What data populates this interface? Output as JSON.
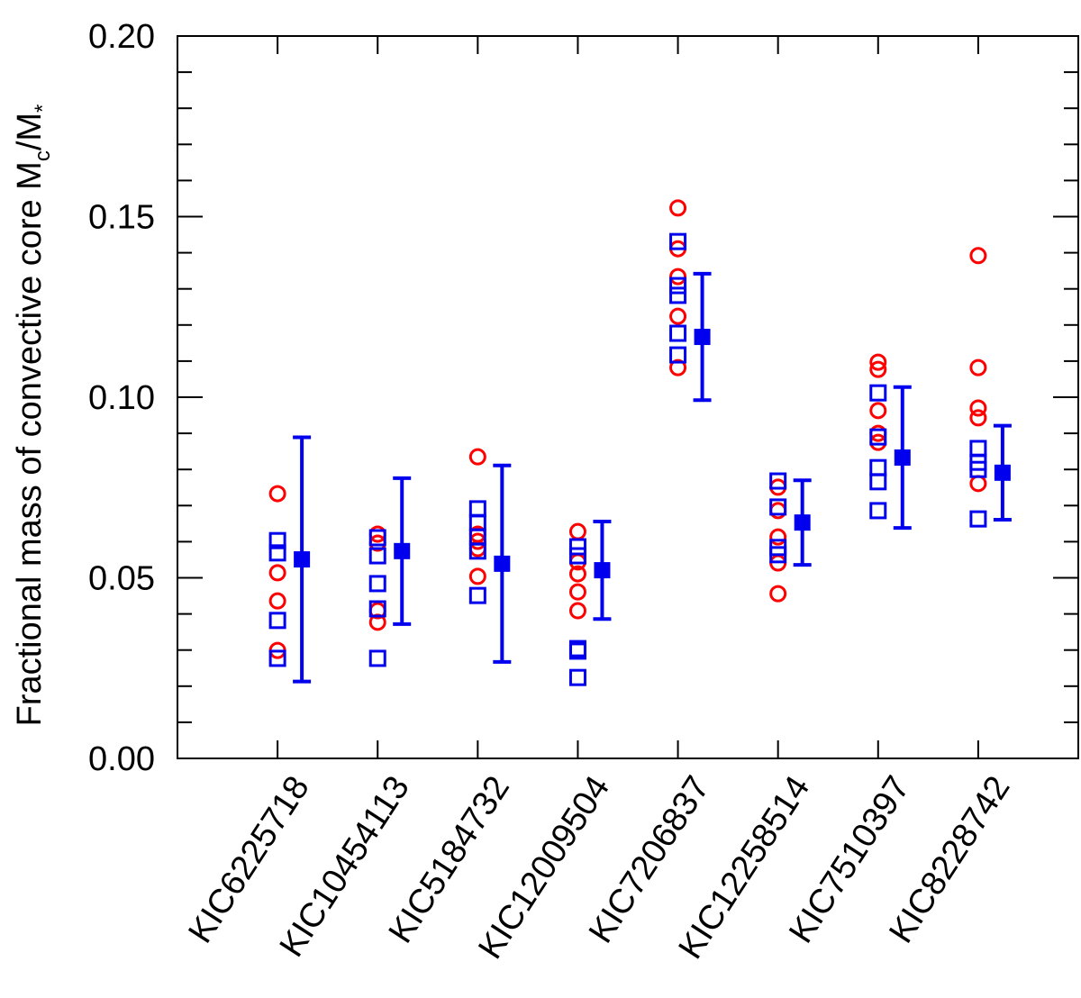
{
  "chart_data": {
    "type": "scatter",
    "ylabel": [
      "Fractional  mass of convective core M",
      "c",
      "/M",
      "*"
    ],
    "categories": [
      "KIC6225718",
      "KIC10454113",
      "KIC5184732",
      "KIC12009504",
      "KIC7206837",
      "KIC12258514",
      "KIC7510397",
      "KIC8228742"
    ],
    "ylim": [
      0,
      0.2
    ],
    "yticks": [
      {
        "value": 0,
        "label": "0.00"
      },
      {
        "value": 0.05,
        "label": "0.05"
      },
      {
        "value": 0.1,
        "label": "0.10"
      },
      {
        "value": 0.15,
        "label": "0.15"
      },
      {
        "value": 0.2,
        "label": "0.20"
      }
    ],
    "yminor_ticks": [
      0.01,
      0.02,
      0.03,
      0.04,
      0.06,
      0.07,
      0.08,
      0.09,
      0.11,
      0.12,
      0.13,
      0.14,
      0.16,
      0.17,
      0.18,
      0.19
    ],
    "series": [
      {
        "marker": "circle",
        "color": "#ff0000",
        "values": [
          [
            0.0733,
            0.0514,
            0.0436,
            0.0299
          ],
          [
            0.0621,
            0.0596,
            0.0409,
            0.0377
          ],
          [
            0.0835,
            0.0621,
            0.0601,
            0.0581,
            0.0504
          ],
          [
            0.0628,
            0.0544,
            0.0511,
            0.0461,
            0.0409
          ],
          [
            0.1524,
            0.1411,
            0.1334,
            0.1224,
            0.1082
          ],
          [
            0.0751,
            0.0686,
            0.0613,
            0.0541,
            0.0456
          ],
          [
            0.1097,
            0.1077,
            0.0963,
            0.09,
            0.0875
          ],
          [
            0.1392,
            0.1082,
            0.097,
            0.0943,
            0.0761
          ]
        ]
      },
      {
        "marker": "square",
        "color": "#0000ee",
        "values": [
          [
            0.0603,
            0.0569,
            0.0382,
            0.0277
          ],
          [
            0.0611,
            0.0561,
            0.0484,
            0.0414,
            0.0277
          ],
          [
            0.0691,
            0.0653,
            0.0613,
            0.0574,
            0.0451
          ],
          [
            0.0586,
            0.0561,
            0.0304,
            0.0297,
            0.0224
          ],
          [
            0.1431,
            0.1309,
            0.1282,
            0.1177,
            0.1117
          ],
          [
            0.0768,
            0.0696,
            0.0584,
            0.0564
          ],
          [
            0.1012,
            0.089,
            0.0805,
            0.0766,
            0.0686
          ],
          [
            0.0858,
            0.082,
            0.08,
            0.0663
          ]
        ]
      },
      {
        "marker": "filled-square",
        "color": "#0000ee",
        "values": [
          0.0551,
          0.0574,
          0.0539,
          0.0521,
          0.1167,
          0.0653,
          0.0833,
          0.0791
        ],
        "errors": [
          0.0338,
          0.0202,
          0.0272,
          0.0135,
          0.0175,
          0.0117,
          0.0195,
          0.013
        ]
      }
    ]
  }
}
